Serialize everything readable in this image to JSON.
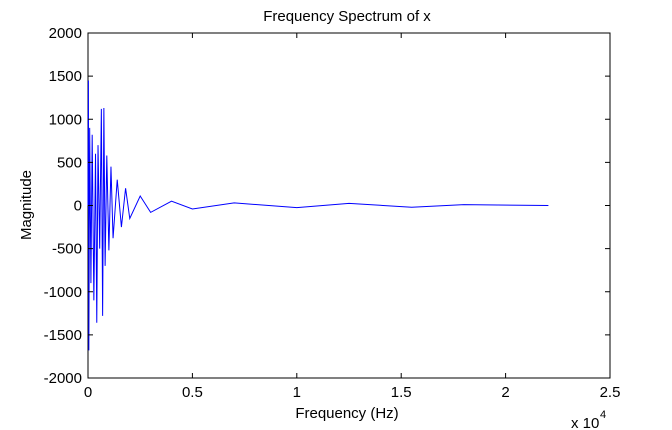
{
  "chart_data": {
    "type": "line",
    "title": "Frequency Spectrum of x",
    "xlabel": "Frequency (Hz)",
    "ylabel": "Magnitude",
    "x_exponent_label": {
      "base": "x 10",
      "exp": "4"
    },
    "xlim": [
      0,
      25000
    ],
    "ylim": [
      -2000,
      2000
    ],
    "x_ticks": [
      0,
      5000,
      10000,
      15000,
      20000,
      25000
    ],
    "x_tick_labels": [
      "0",
      "0.5",
      "1",
      "1.5",
      "2",
      "2.5"
    ],
    "y_ticks": [
      2000,
      1500,
      1000,
      500,
      0,
      -500,
      -1000,
      -1500,
      -2000
    ],
    "y_tick_labels": [
      "2000",
      "1500",
      "1000",
      "500",
      "0",
      "-500",
      "-1000",
      "-1500",
      "-2000"
    ],
    "grid": false,
    "series": [
      {
        "color": "#0000ff",
        "x_range": [
          0,
          22050
        ],
        "points": [
          {
            "x": 0,
            "y": 0
          },
          {
            "x": 20,
            "y": 1450
          },
          {
            "x": 40,
            "y": -1680
          },
          {
            "x": 80,
            "y": 900
          },
          {
            "x": 140,
            "y": -900
          },
          {
            "x": 200,
            "y": 820
          },
          {
            "x": 280,
            "y": -1100
          },
          {
            "x": 360,
            "y": 600
          },
          {
            "x": 420,
            "y": -1360
          },
          {
            "x": 480,
            "y": 700
          },
          {
            "x": 560,
            "y": -500
          },
          {
            "x": 640,
            "y": 1120
          },
          {
            "x": 700,
            "y": -1280
          },
          {
            "x": 760,
            "y": 1130
          },
          {
            "x": 820,
            "y": -700
          },
          {
            "x": 900,
            "y": 580
          },
          {
            "x": 1000,
            "y": -520
          },
          {
            "x": 1100,
            "y": 450
          },
          {
            "x": 1200,
            "y": -380
          },
          {
            "x": 1400,
            "y": 300
          },
          {
            "x": 1600,
            "y": -250
          },
          {
            "x": 1800,
            "y": 200
          },
          {
            "x": 2000,
            "y": -150
          },
          {
            "x": 2500,
            "y": 110
          },
          {
            "x": 3000,
            "y": -80
          },
          {
            "x": 4000,
            "y": 50
          },
          {
            "x": 5000,
            "y": -40
          },
          {
            "x": 7000,
            "y": 30
          },
          {
            "x": 10000,
            "y": -25
          },
          {
            "x": 12500,
            "y": 25
          },
          {
            "x": 15500,
            "y": -20
          },
          {
            "x": 18000,
            "y": 10
          },
          {
            "x": 22050,
            "y": 0
          }
        ]
      }
    ]
  }
}
